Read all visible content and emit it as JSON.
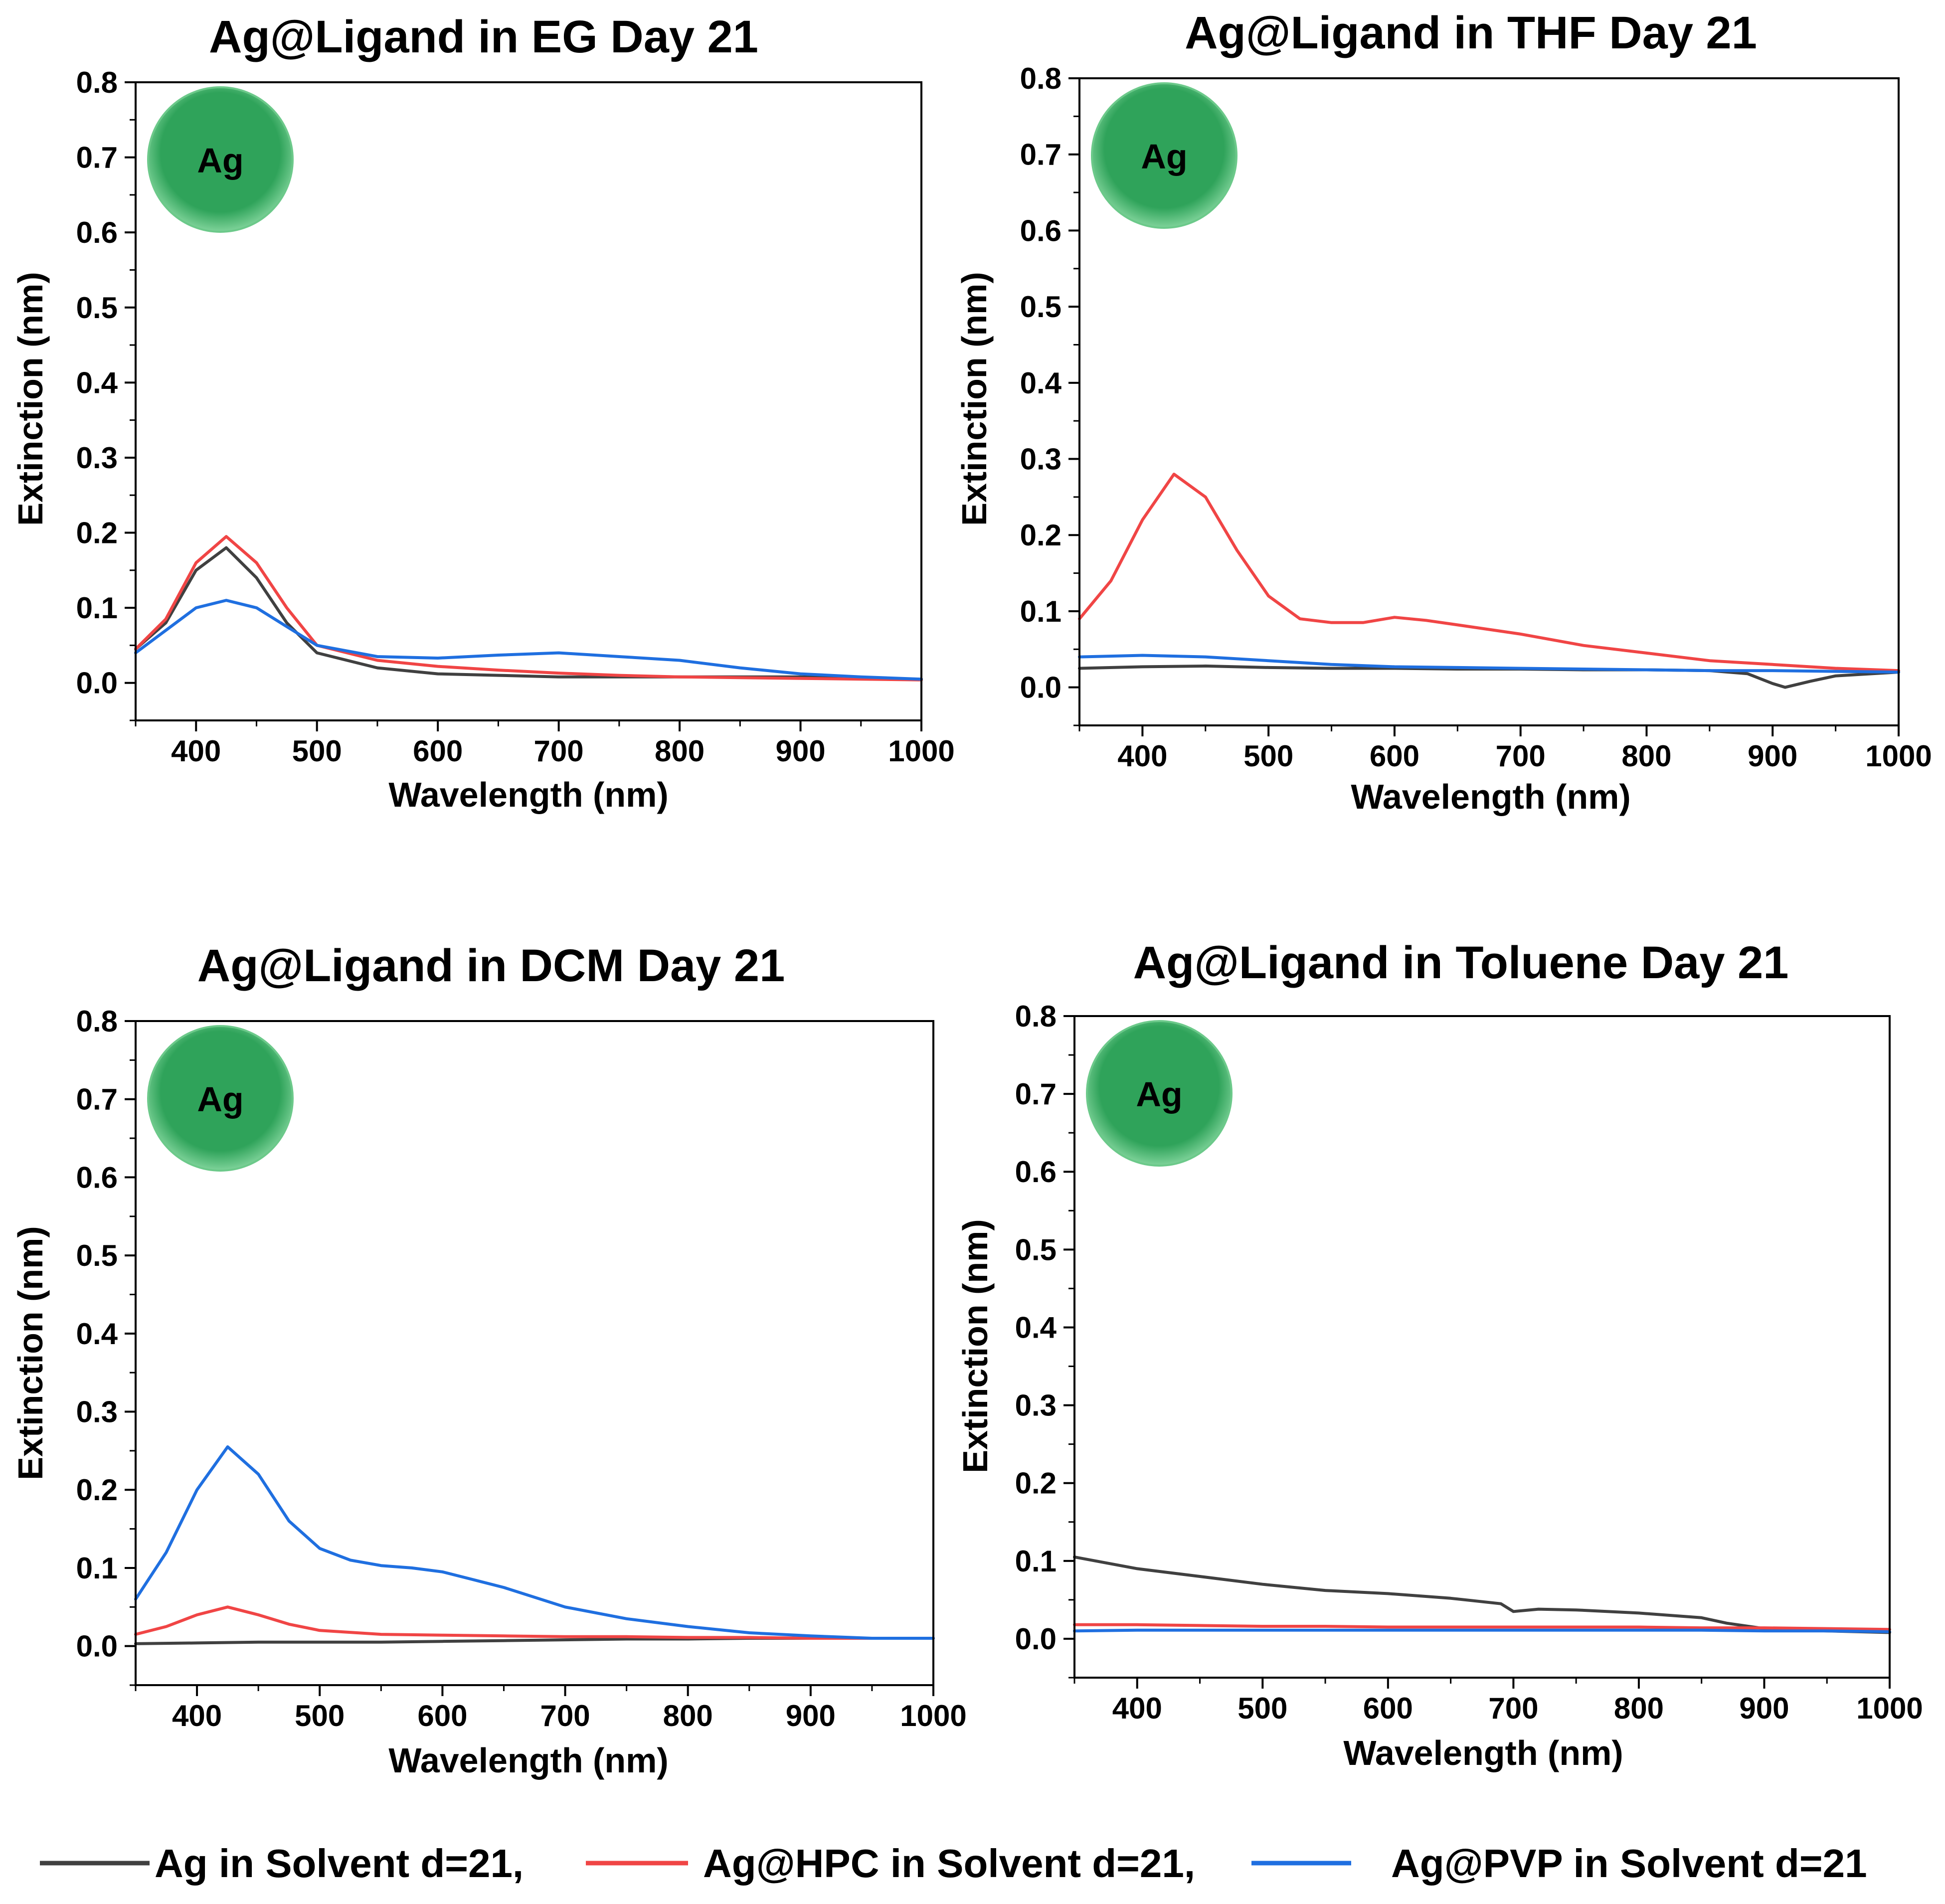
{
  "legend": [
    {
      "label": "Ag in Solvent d=21,",
      "color": "#404040"
    },
    {
      "label": "Ag@HPC in Solvent d=21,",
      "color": "#f04545"
    },
    {
      "label": "Ag@PVP in Solvent d=21",
      "color": "#1f6fe0"
    }
  ],
  "particle_label": "Ag",
  "particle_color": "#2fa35a",
  "chart_data": [
    {
      "type": "line",
      "title": "Ag@Ligand in EG Day 21",
      "xlabel": "Wavelength (nm)",
      "ylabel": "Extinction (nm)",
      "xlim": [
        350,
        1000
      ],
      "ylim": [
        -0.05,
        0.8
      ],
      "xticks": [
        "400",
        "500",
        "600",
        "700",
        "800",
        "900",
        "1000"
      ],
      "yticks": [
        "0.0",
        "0.1",
        "0.2",
        "0.3",
        "0.4",
        "0.5",
        "0.6",
        "0.7",
        "0.8"
      ],
      "grid": false,
      "series": [
        {
          "name": "Ag in Solvent d=21,",
          "color": "#404040",
          "x": [
            350,
            375,
            400,
            425,
            450,
            475,
            500,
            550,
            600,
            650,
            700,
            750,
            800,
            850,
            900,
            950,
            1000
          ],
          "y": [
            0.045,
            0.08,
            0.15,
            0.18,
            0.14,
            0.08,
            0.04,
            0.02,
            0.012,
            0.01,
            0.008,
            0.008,
            0.008,
            0.008,
            0.008,
            0.006,
            0.005
          ]
        },
        {
          "name": "Ag@HPC in Solvent d=21,",
          "color": "#f04545",
          "x": [
            350,
            375,
            400,
            425,
            450,
            475,
            500,
            550,
            600,
            650,
            700,
            750,
            800,
            850,
            900,
            950,
            1000
          ],
          "y": [
            0.045,
            0.085,
            0.16,
            0.195,
            0.16,
            0.1,
            0.05,
            0.03,
            0.022,
            0.017,
            0.013,
            0.01,
            0.008,
            0.007,
            0.006,
            0.005,
            0.004
          ]
        },
        {
          "name": "Ag@PVP in Solvent d=21",
          "color": "#1f6fe0",
          "x": [
            350,
            375,
            400,
            425,
            450,
            475,
            500,
            550,
            600,
            650,
            700,
            750,
            800,
            850,
            900,
            950,
            1000
          ],
          "y": [
            0.04,
            0.07,
            0.1,
            0.11,
            0.1,
            0.075,
            0.05,
            0.035,
            0.033,
            0.037,
            0.04,
            0.035,
            0.03,
            0.02,
            0.012,
            0.008,
            0.005
          ]
        }
      ]
    },
    {
      "type": "line",
      "title": "Ag@Ligand in THF Day 21",
      "xlabel": "Wavelength (nm)",
      "ylabel": "Extinction (nm)",
      "xlim": [
        350,
        1000
      ],
      "ylim": [
        -0.05,
        0.8
      ],
      "xticks": [
        "400",
        "500",
        "600",
        "700",
        "800",
        "900",
        "1000"
      ],
      "yticks": [
        "0.0",
        "0.1",
        "0.2",
        "0.3",
        "0.4",
        "0.5",
        "0.6",
        "0.7",
        "0.8"
      ],
      "grid": false,
      "series": [
        {
          "name": "Ag in Solvent d=21,",
          "color": "#404040",
          "x": [
            350,
            400,
            450,
            500,
            550,
            600,
            650,
            700,
            750,
            800,
            850,
            880,
            900,
            910,
            930,
            950,
            1000
          ],
          "y": [
            0.025,
            0.027,
            0.028,
            0.026,
            0.025,
            0.025,
            0.024,
            0.024,
            0.023,
            0.023,
            0.022,
            0.018,
            0.005,
            0.0,
            0.008,
            0.015,
            0.02
          ]
        },
        {
          "name": "Ag@HPC in Solvent d=21,",
          "color": "#f04545",
          "x": [
            350,
            375,
            400,
            425,
            450,
            475,
            500,
            525,
            550,
            575,
            600,
            625,
            650,
            700,
            750,
            800,
            850,
            900,
            950,
            1000
          ],
          "y": [
            0.09,
            0.14,
            0.22,
            0.28,
            0.25,
            0.18,
            0.12,
            0.09,
            0.085,
            0.085,
            0.092,
            0.088,
            0.082,
            0.07,
            0.055,
            0.045,
            0.035,
            0.03,
            0.025,
            0.022
          ]
        },
        {
          "name": "Ag@PVP in Solvent d=21",
          "color": "#1f6fe0",
          "x": [
            350,
            400,
            450,
            500,
            550,
            600,
            650,
            700,
            750,
            800,
            850,
            900,
            950,
            1000
          ],
          "y": [
            0.04,
            0.042,
            0.04,
            0.035,
            0.03,
            0.027,
            0.026,
            0.025,
            0.024,
            0.023,
            0.022,
            0.022,
            0.021,
            0.02
          ]
        }
      ]
    },
    {
      "type": "line",
      "title": "Ag@Ligand in DCM Day 21",
      "xlabel": "Wavelength (nm)",
      "ylabel": "Extinction (nm)",
      "xlim": [
        350,
        1000
      ],
      "ylim": [
        -0.05,
        0.8
      ],
      "xticks": [
        "400",
        "500",
        "600",
        "700",
        "800",
        "900",
        "1000"
      ],
      "yticks": [
        "0.0",
        "0.1",
        "0.2",
        "0.3",
        "0.4",
        "0.5",
        "0.6",
        "0.7",
        "0.8"
      ],
      "grid": false,
      "series": [
        {
          "name": "Ag in Solvent d=21,",
          "color": "#404040",
          "x": [
            350,
            400,
            450,
            500,
            550,
            600,
            650,
            700,
            750,
            800,
            850,
            900,
            950,
            1000
          ],
          "y": [
            0.003,
            0.004,
            0.005,
            0.005,
            0.005,
            0.006,
            0.007,
            0.008,
            0.009,
            0.009,
            0.01,
            0.01,
            0.01,
            0.01
          ]
        },
        {
          "name": "Ag@HPC in Solvent d=21,",
          "color": "#f04545",
          "x": [
            350,
            375,
            400,
            425,
            450,
            475,
            500,
            550,
            600,
            650,
            700,
            750,
            800,
            850,
            900,
            950,
            1000
          ],
          "y": [
            0.015,
            0.025,
            0.04,
            0.05,
            0.04,
            0.028,
            0.02,
            0.015,
            0.014,
            0.013,
            0.012,
            0.012,
            0.011,
            0.011,
            0.01,
            0.01,
            0.01
          ]
        },
        {
          "name": "Ag@PVP in Solvent d=21",
          "color": "#1f6fe0",
          "x": [
            350,
            375,
            400,
            425,
            450,
            475,
            500,
            525,
            550,
            575,
            600,
            625,
            650,
            700,
            750,
            800,
            850,
            900,
            950,
            1000
          ],
          "y": [
            0.06,
            0.12,
            0.2,
            0.255,
            0.22,
            0.16,
            0.125,
            0.11,
            0.103,
            0.1,
            0.095,
            0.085,
            0.075,
            0.05,
            0.035,
            0.025,
            0.017,
            0.013,
            0.01,
            0.01
          ]
        }
      ]
    },
    {
      "type": "line",
      "title": "Ag@Ligand in Toluene Day 21",
      "xlabel": "Wavelength (nm)",
      "ylabel": "Extinction (nm)",
      "xlim": [
        350,
        1000
      ],
      "ylim": [
        -0.05,
        0.8
      ],
      "xticks": [
        "400",
        "500",
        "600",
        "700",
        "800",
        "900",
        "1000"
      ],
      "yticks": [
        "0.0",
        "0.1",
        "0.2",
        "0.3",
        "0.4",
        "0.5",
        "0.6",
        "0.7",
        "0.8"
      ],
      "grid": false,
      "series": [
        {
          "name": "Ag in Solvent d=21,",
          "color": "#404040",
          "x": [
            350,
            400,
            450,
            500,
            550,
            600,
            650,
            690,
            700,
            720,
            750,
            800,
            850,
            870,
            900,
            950,
            1000
          ],
          "y": [
            0.105,
            0.09,
            0.08,
            0.07,
            0.062,
            0.058,
            0.052,
            0.045,
            0.035,
            0.038,
            0.037,
            0.033,
            0.027,
            0.02,
            0.013,
            0.01,
            0.008
          ]
        },
        {
          "name": "Ag@HPC in Solvent d=21,",
          "color": "#f04545",
          "x": [
            350,
            400,
            450,
            500,
            550,
            600,
            650,
            700,
            750,
            800,
            850,
            900,
            950,
            1000
          ],
          "y": [
            0.018,
            0.018,
            0.017,
            0.016,
            0.016,
            0.015,
            0.015,
            0.015,
            0.015,
            0.015,
            0.014,
            0.014,
            0.013,
            0.012
          ]
        },
        {
          "name": "Ag@PVP in Solvent d=21",
          "color": "#1f6fe0",
          "x": [
            350,
            400,
            450,
            500,
            550,
            600,
            650,
            700,
            750,
            800,
            850,
            900,
            950,
            1000
          ],
          "y": [
            0.01,
            0.011,
            0.011,
            0.011,
            0.011,
            0.011,
            0.011,
            0.011,
            0.011,
            0.011,
            0.011,
            0.01,
            0.01,
            0.009
          ]
        }
      ]
    }
  ]
}
